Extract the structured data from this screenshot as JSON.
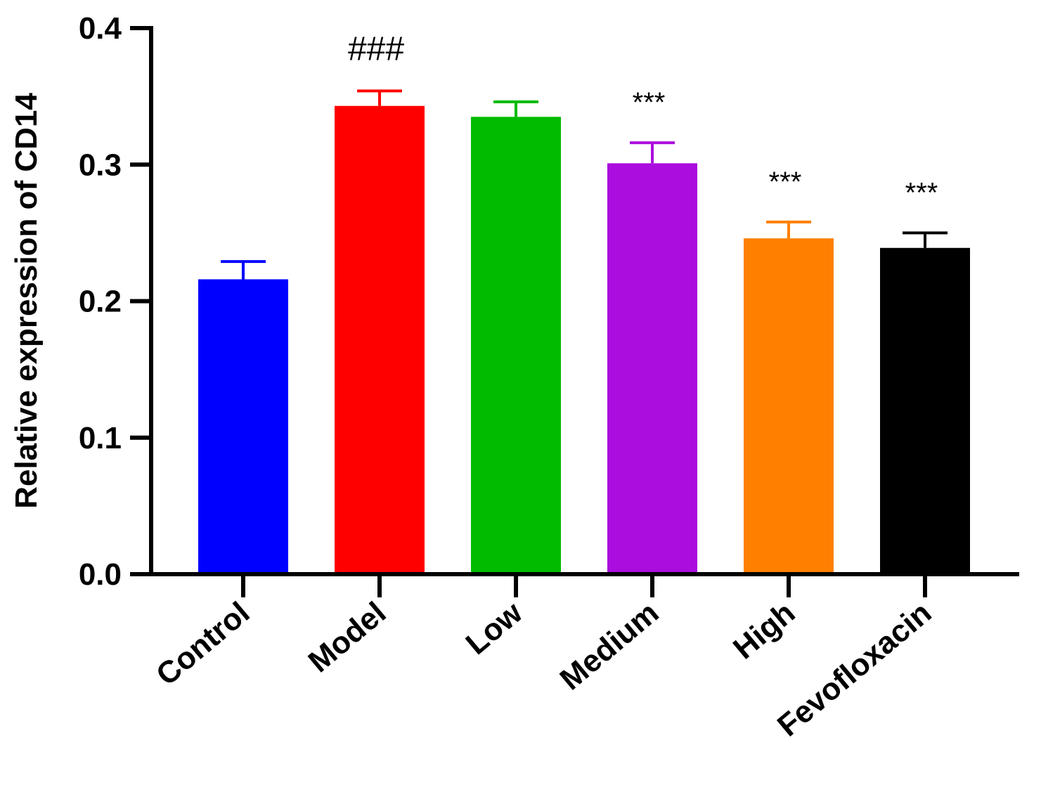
{
  "chart_data": {
    "type": "bar",
    "title": "",
    "xlabel": "",
    "ylabel": "Relative expression of CD14",
    "ylim": [
      0,
      0.4
    ],
    "yticks": [
      "0.0",
      "0.1",
      "0.2",
      "0.3",
      "0.4"
    ],
    "grid": false,
    "categories": [
      "Control",
      "Model",
      "Low",
      "Medium",
      "High",
      "Fevofloxacin"
    ],
    "values": [
      0.216,
      0.343,
      0.335,
      0.301,
      0.246,
      0.239
    ],
    "errors": [
      0.013,
      0.011,
      0.011,
      0.015,
      0.012,
      0.011
    ],
    "colors": [
      "#0000ff",
      "#ff0000",
      "#00bb00",
      "#aa0ddd",
      "#ff8000",
      "#000000"
    ],
    "annotations": [
      "",
      "###",
      "",
      "***",
      "***",
      "***"
    ]
  }
}
